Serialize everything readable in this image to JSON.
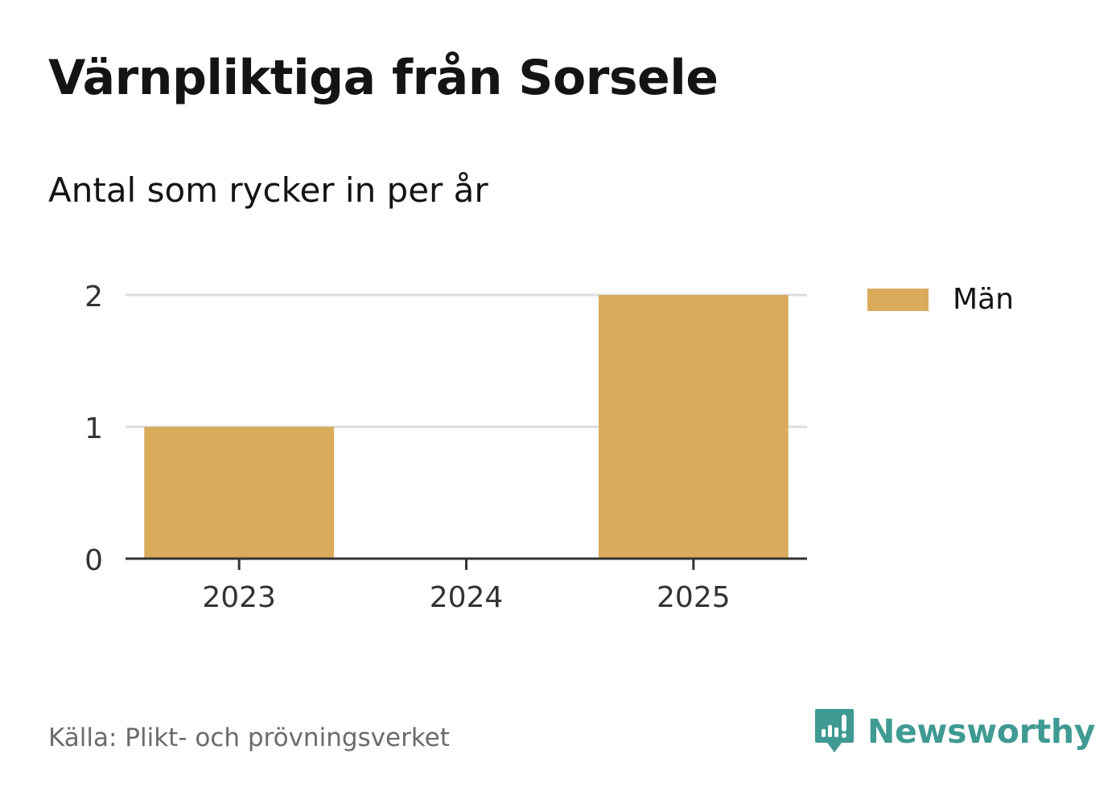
{
  "header": {
    "title": "Värnpliktiga från Sorsele",
    "subtitle": "Antal som rycker in per år"
  },
  "chart_data": {
    "type": "bar",
    "categories": [
      "2023",
      "2024",
      "2025"
    ],
    "series": [
      {
        "name": "Män",
        "values": [
          1,
          0,
          2
        ],
        "color": "#d9ab5a"
      }
    ],
    "ylim": [
      0,
      2
    ],
    "yticks": [
      "0",
      "1",
      "2"
    ],
    "grid": true,
    "legend_position": "right"
  },
  "footer": {
    "source": "Källa: Plikt- och prövningsverket",
    "brand": "Newsworthy",
    "brand_icon": "newsworthy-logo-icon",
    "brand_color": "#3f9a92"
  }
}
